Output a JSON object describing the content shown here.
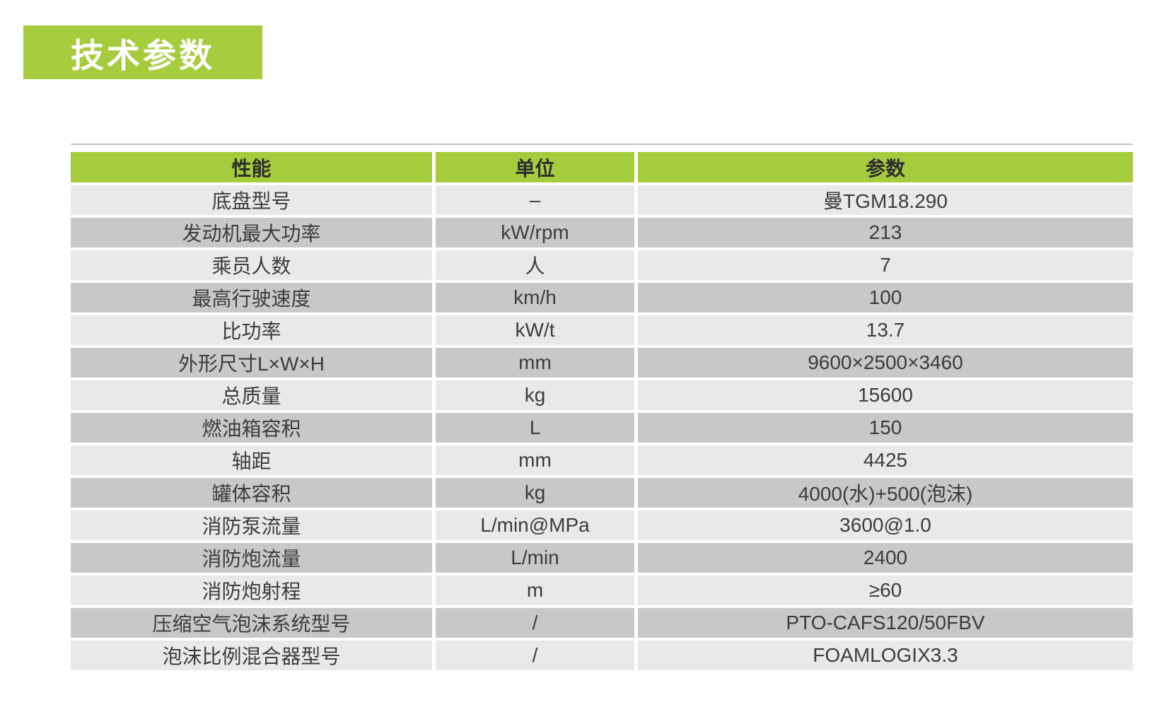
{
  "title_badge": {
    "text": "技术参数",
    "background": "#a5cc3d",
    "text_color": "#ffffff"
  },
  "table": {
    "colors": {
      "header_bg": "#a5cc3d",
      "row_light": "#e9e9e9",
      "row_dark": "#c8c8c8",
      "text": "#3c3c3c",
      "top_rule": "#c3c3c3"
    },
    "header": {
      "performance": "性能",
      "unit": "单位",
      "parameter": "参数"
    },
    "rows": [
      {
        "label": "底盘型号",
        "unit": "–",
        "value": "曼TGM18.290"
      },
      {
        "label": "发动机最大功率",
        "unit": "kW/rpm",
        "value": "213"
      },
      {
        "label": "乘员人数",
        "unit": "人",
        "value": "7"
      },
      {
        "label": "最高行驶速度",
        "unit": "km/h",
        "value": "100"
      },
      {
        "label": "比功率",
        "unit": "kW/t",
        "value": "13.7"
      },
      {
        "label": "外形尺寸L×W×H",
        "unit": "mm",
        "value": "9600×2500×3460"
      },
      {
        "label": "总质量",
        "unit": "kg",
        "value": "15600"
      },
      {
        "label": "燃油箱容积",
        "unit": "L",
        "value": "150"
      },
      {
        "label": "轴距",
        "unit": "mm",
        "value": "4425"
      },
      {
        "label": "罐体容积",
        "unit": "kg",
        "value": "4000(水)+500(泡沫)"
      },
      {
        "label": "消防泵流量",
        "unit": "L/min@MPa",
        "value": "3600@1.0"
      },
      {
        "label": "消防炮流量",
        "unit": "L/min",
        "value": "2400"
      },
      {
        "label": "消防炮射程",
        "unit": "m",
        "value": "≥60"
      },
      {
        "label": "压缩空气泡沫系统型号",
        "unit": "/",
        "value": "PTO-CAFS120/50FBV"
      },
      {
        "label": "泡沫比例混合器型号",
        "unit": "/",
        "value": "FOAMLOGIX3.3"
      }
    ]
  }
}
